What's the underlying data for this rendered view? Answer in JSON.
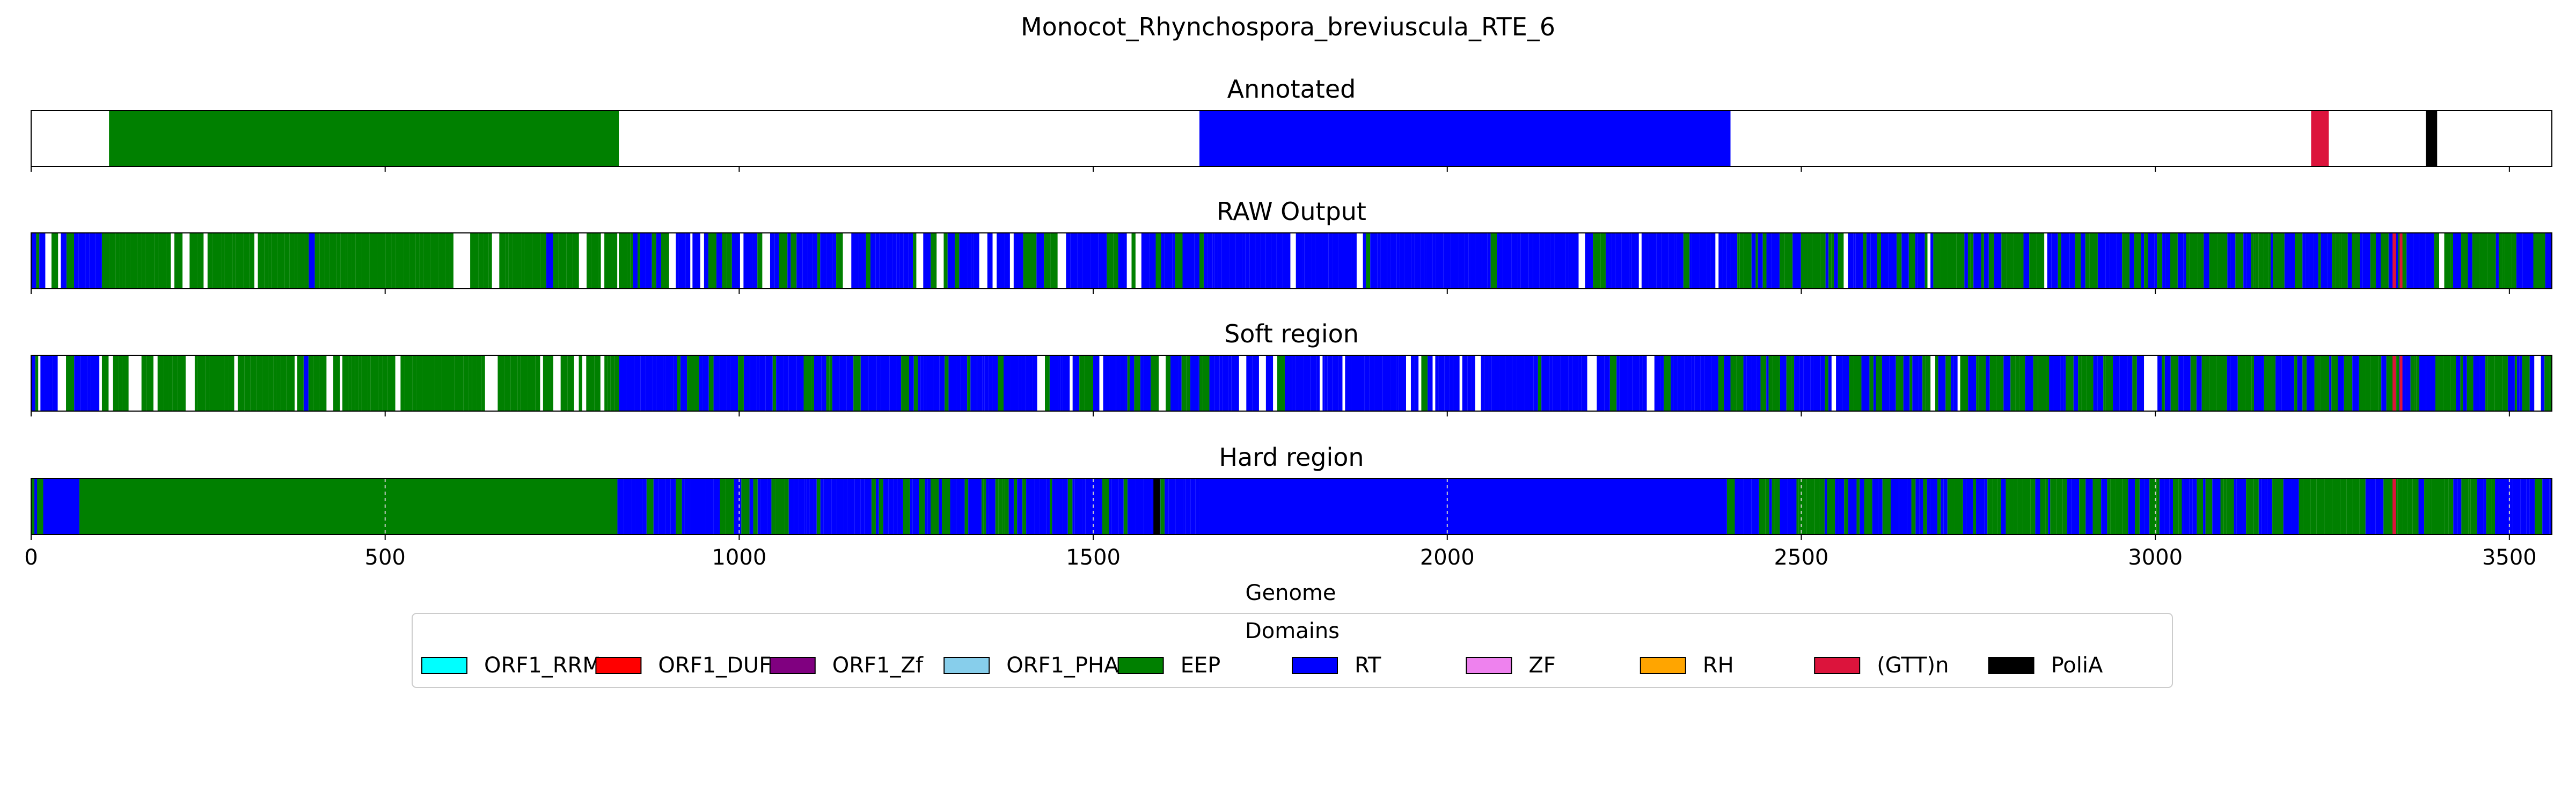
{
  "chart_data": {
    "type": "bar",
    "title": "Monocot_Rhynchospora_breviuscula_RTE_6",
    "xlabel": "Genome",
    "xlim": [
      0,
      3560
    ],
    "xticks": [
      0,
      500,
      1000,
      1500,
      2000,
      2500,
      3000,
      3500
    ],
    "legend": {
      "title": "Domains",
      "placement": "bottom-center",
      "entries": [
        {
          "name": "ORF1_RRM",
          "color": "#00ffff"
        },
        {
          "name": "ORF1_DUF",
          "color": "#ff0000"
        },
        {
          "name": "ORF1_Zf",
          "color": "#800080"
        },
        {
          "name": "ORF1_PHA",
          "color": "#87ceeb"
        },
        {
          "name": "EEP",
          "color": "#008000"
        },
        {
          "name": "RT",
          "color": "#0000ff"
        },
        {
          "name": "ZF",
          "color": "#ee82ee"
        },
        {
          "name": "RH",
          "color": "#ffa500"
        },
        {
          "name": "(GTT)n",
          "color": "#dc143c"
        },
        {
          "name": "PoliA",
          "color": "#000000"
        }
      ]
    },
    "panels": [
      {
        "title": "Annotated",
        "segments": [
          {
            "domain": "EEP",
            "start": 110,
            "end": 830
          },
          {
            "domain": "RT",
            "start": 1650,
            "end": 2400
          },
          {
            "domain": "(GTT)n",
            "start": 3220,
            "end": 3245
          },
          {
            "domain": "PoliA",
            "start": 3382,
            "end": 3398
          }
        ]
      },
      {
        "title": "RAW Output",
        "regions": [
          {
            "start": 0,
            "end": 100,
            "mix": "RT",
            "alt": "EEP",
            "altFrac": 0.35,
            "gapFrac": 0.2
          },
          {
            "start": 100,
            "end": 830,
            "mix": "EEP",
            "alt": "RT",
            "altFrac": 0.02,
            "gapFrac": 0.16
          },
          {
            "start": 830,
            "end": 1650,
            "mix": "RT",
            "alt": "EEP",
            "altFrac": 0.28,
            "gapFrac": 0.07
          },
          {
            "start": 1650,
            "end": 2400,
            "mix": "RT",
            "alt": "EEP",
            "altFrac": 0.08,
            "gapFrac": 0.1
          },
          {
            "start": 2400,
            "end": 3560,
            "mix": "EEP",
            "alt": "RT",
            "altFrac": 0.45,
            "gapFrac": 0.05
          }
        ],
        "extras": [
          {
            "domain": "(GTT)n",
            "start": 3335,
            "end": 3340
          },
          {
            "domain": "(GTT)n",
            "start": 3345,
            "end": 3349
          }
        ]
      },
      {
        "title": "Soft region",
        "regions": [
          {
            "start": 0,
            "end": 100,
            "mix": "RT",
            "alt": "EEP",
            "altFrac": 0.35,
            "gapFrac": 0.2
          },
          {
            "start": 100,
            "end": 830,
            "mix": "EEP",
            "alt": "RT",
            "altFrac": 0.02,
            "gapFrac": 0.16
          },
          {
            "start": 830,
            "end": 1650,
            "mix": "RT",
            "alt": "EEP",
            "altFrac": 0.28,
            "gapFrac": 0.07
          },
          {
            "start": 1650,
            "end": 2400,
            "mix": "RT",
            "alt": "EEP",
            "altFrac": 0.08,
            "gapFrac": 0.1
          },
          {
            "start": 2400,
            "end": 3560,
            "mix": "EEP",
            "alt": "RT",
            "altFrac": 0.45,
            "gapFrac": 0.05
          }
        ],
        "extras": [
          {
            "domain": "(GTT)n",
            "start": 3335,
            "end": 3340
          },
          {
            "domain": "(GTT)n",
            "start": 3345,
            "end": 3349
          }
        ]
      },
      {
        "title": "Hard region",
        "grid": true,
        "segments": [
          {
            "domain": "RT",
            "start": 0,
            "end": 68
          },
          {
            "domain": "EEP",
            "start": 68,
            "end": 828
          },
          {
            "domain": "RT",
            "start": 1650,
            "end": 2395
          }
        ],
        "regions": [
          {
            "start": 0,
            "end": 68,
            "mix": "RT",
            "alt": "EEP",
            "altFrac": 0.3,
            "gapFrac": 0
          },
          {
            "start": 828,
            "end": 1650,
            "mix": "RT",
            "alt": "EEP",
            "altFrac": 0.3,
            "gapFrac": 0
          },
          {
            "start": 2395,
            "end": 3560,
            "mix": "EEP",
            "alt": "RT",
            "altFrac": 0.45,
            "gapFrac": 0
          }
        ],
        "extras": [
          {
            "domain": "PoliA",
            "start": 1585,
            "end": 1594
          },
          {
            "domain": "(GTT)n",
            "start": 3335,
            "end": 3340
          }
        ]
      }
    ]
  }
}
